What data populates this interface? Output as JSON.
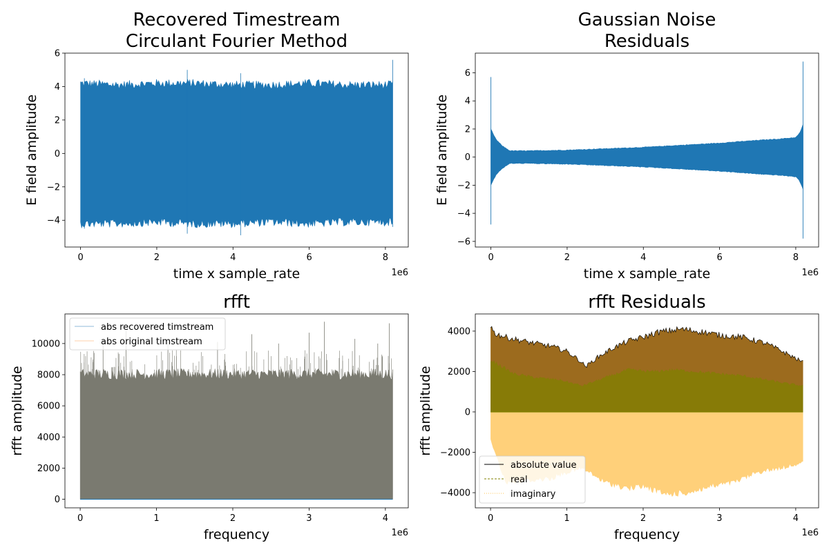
{
  "chart_data": [
    {
      "type": "line",
      "title_lines": [
        "Recovered Timestream",
        "Circulant Fourier Method"
      ],
      "xlabel": "time x sample_rate",
      "ylabel": "E field amplitude",
      "x_offset_text": "1e6",
      "xlim": [
        -0.41,
        8.6
      ],
      "ylim": [
        -5.6,
        6.0
      ],
      "xticks": [
        0,
        2,
        4,
        6,
        8
      ],
      "xtick_labels": [
        "0",
        "2",
        "4",
        "6",
        "8"
      ],
      "yticks": [
        -4,
        -2,
        0,
        2,
        4,
        6
      ],
      "ytick_labels": [
        "−4",
        "−2",
        "0",
        "2",
        "4",
        "6"
      ],
      "grid": false,
      "series": [
        {
          "color": "#1f77b4",
          "x_range": [
            0,
            8.19
          ],
          "envelope": {
            "x": [
              0,
              1,
              2,
              3,
              4,
              5,
              6,
              7,
              8.19
            ],
            "upper": [
              4.2,
              4.1,
              4.2,
              4.2,
              4.1,
              4.1,
              4.2,
              4.1,
              4.1
            ],
            "lower": [
              -4.2,
              -4.2,
              -4.1,
              -4.2,
              -4.2,
              -4.1,
              -4.2,
              -4.1,
              -4.1
            ]
          },
          "peaks": {
            "x": [
              2.8,
              8.19,
              4.2,
              0.1
            ],
            "upper": [
              5.0,
              5.6,
              4.8,
              4.5
            ],
            "lower": [
              -4.8,
              -4.4,
              -4.9,
              -4.5
            ]
          }
        }
      ]
    },
    {
      "type": "line",
      "title_lines": [
        "Gaussian Noise",
        "Residuals"
      ],
      "xlabel": "time x sample_rate",
      "ylabel": "E field amplitude",
      "x_offset_text": "1e6",
      "xlim": [
        -0.41,
        8.6
      ],
      "ylim": [
        -6.4,
        7.4
      ],
      "xticks": [
        0,
        2,
        4,
        6,
        8
      ],
      "xtick_labels": [
        "0",
        "2",
        "4",
        "6",
        "8"
      ],
      "yticks": [
        -6,
        -4,
        -2,
        0,
        2,
        4,
        6
      ],
      "ytick_labels": [
        "−6",
        "−4",
        "−2",
        "0",
        "2",
        "4",
        "6"
      ],
      "grid": false,
      "series": [
        {
          "color": "#1f77b4",
          "x_range": [
            0,
            8.19
          ],
          "envelope": {
            "x": [
              0,
              0.05,
              0.15,
              0.3,
              0.5,
              1,
              2,
              3,
              4,
              5,
              6,
              7,
              7.6,
              8.0,
              8.1,
              8.19
            ],
            "upper": [
              2.0,
              1.7,
              1.2,
              0.8,
              0.45,
              0.45,
              0.5,
              0.6,
              0.7,
              0.85,
              1.0,
              1.2,
              1.3,
              1.4,
              1.7,
              2.3
            ],
            "lower": [
              -2.0,
              -1.7,
              -1.2,
              -0.8,
              -0.45,
              -0.45,
              -0.5,
              -0.6,
              -0.7,
              -0.85,
              -1.0,
              -1.2,
              -1.3,
              -1.4,
              -1.7,
              -2.3
            ]
          },
          "spikes": [
            {
              "x": 0.0,
              "y_max": 5.7,
              "y_min": -4.8
            },
            {
              "x": 8.19,
              "y_max": 6.8,
              "y_min": -5.8
            }
          ]
        }
      ]
    },
    {
      "type": "line",
      "title_lines": [
        "rfft"
      ],
      "xlabel": "frequency",
      "ylabel": "rfft amplitude",
      "x_offset_text": "1e6",
      "xlim": [
        -0.2,
        4.3
      ],
      "ylim": [
        -550,
        11900
      ],
      "xticks": [
        0,
        1,
        2,
        3,
        4
      ],
      "xtick_labels": [
        "0",
        "1",
        "2",
        "3",
        "4"
      ],
      "yticks": [
        0,
        2000,
        4000,
        6000,
        8000,
        10000
      ],
      "ytick_labels": [
        "0",
        "2000",
        "4000",
        "6000",
        "8000",
        "10000"
      ],
      "grid": false,
      "legend": {
        "placement": "upper-left",
        "entries": [
          "abs recovered timstream",
          "abs original timstream"
        ],
        "colors": [
          "#1f77b4",
          "#ff7f0e"
        ]
      },
      "series": [
        {
          "name": "abs recovered timstream",
          "color": "#1f77b4",
          "x_range": [
            0,
            4.096
          ],
          "envelope": {
            "x": [
              0,
              4.096
            ],
            "upper": [
              7900,
              7900
            ],
            "lower": [
              0,
              0
            ]
          },
          "peaks": {
            "x": [
              0.3,
              0.6,
              1.15,
              1.8,
              2.25,
              2.6,
              3.0,
              3.2,
              3.6,
              3.9,
              4.05
            ],
            "upper": [
              9900,
              10800,
              10300,
              10100,
              10600,
              10000,
              10700,
              11400,
              10300,
              10000,
              11300
            ]
          }
        },
        {
          "name": "abs original timstream",
          "color": "#ff7f0e",
          "x_range": [
            0,
            4.096
          ],
          "envelope": {
            "x": [
              0,
              4.096
            ],
            "upper": [
              7900,
              7900
            ],
            "lower": [
              0,
              0
            ]
          }
        }
      ],
      "blend_color": "#7a7a70"
    },
    {
      "type": "area",
      "title_lines": [
        "rfft Residuals"
      ],
      "xlabel": "frequency",
      "ylabel": "rfft amplitude",
      "x_offset_text": "1e6",
      "xlim": [
        -0.2,
        4.3
      ],
      "ylim": [
        -4750,
        4850
      ],
      "xticks": [
        0,
        1,
        2,
        3,
        4
      ],
      "xtick_labels": [
        "0",
        "1",
        "2",
        "3",
        "4"
      ],
      "yticks": [
        -4000,
        -2000,
        0,
        2000,
        4000
      ],
      "ytick_labels": [
        "−4000",
        "−2000",
        "0",
        "2000",
        "4000"
      ],
      "grid": false,
      "legend": {
        "placement": "lower-left",
        "entries": [
          "absolute value",
          "real",
          "imaginary"
        ],
        "colors": [
          "#000000",
          "#808000",
          "#ffc04d"
        ],
        "styles": [
          "solid",
          "dashed",
          "dotted"
        ]
      },
      "series": [
        {
          "name": "absolute value",
          "color": "#000000",
          "fill": "#9c6b1e",
          "x": [
            0,
            0.05,
            0.2,
            0.5,
            0.8,
            1.0,
            1.15,
            1.25,
            1.4,
            1.6,
            1.8,
            2.0,
            2.2,
            2.5,
            2.8,
            3.0,
            3.3,
            3.6,
            3.8,
            4.0,
            4.096
          ],
          "y": [
            4300,
            3900,
            3700,
            3450,
            3250,
            3000,
            2600,
            2250,
            2700,
            3150,
            3500,
            3700,
            3950,
            4100,
            3950,
            3800,
            3700,
            3400,
            3050,
            2650,
            2450
          ]
        },
        {
          "name": "real",
          "color": "#808000",
          "x": [
            0,
            0.3,
            0.6,
            0.9,
            1.2,
            1.5,
            1.8,
            2.1,
            2.4,
            2.7,
            3.0,
            3.3,
            3.6,
            3.9,
            4.096
          ],
          "y": [
            2600,
            1900,
            1700,
            1600,
            1300,
            1700,
            2100,
            2000,
            2100,
            2000,
            1900,
            1800,
            1600,
            1400,
            1300
          ]
        },
        {
          "name": "imaginary",
          "color": "#ffc04d",
          "x": [
            0,
            0.2,
            0.5,
            0.8,
            1.0,
            1.2,
            1.5,
            1.8,
            2.0,
            2.3,
            2.6,
            2.9,
            3.2,
            3.5,
            3.8,
            4.096
          ],
          "y": [
            -1400,
            -3500,
            -3400,
            -3300,
            -3000,
            -2800,
            -3500,
            -3800,
            -3700,
            -4100,
            -4000,
            -3700,
            -3500,
            -3000,
            -2800,
            -2500
          ]
        }
      ]
    }
  ]
}
